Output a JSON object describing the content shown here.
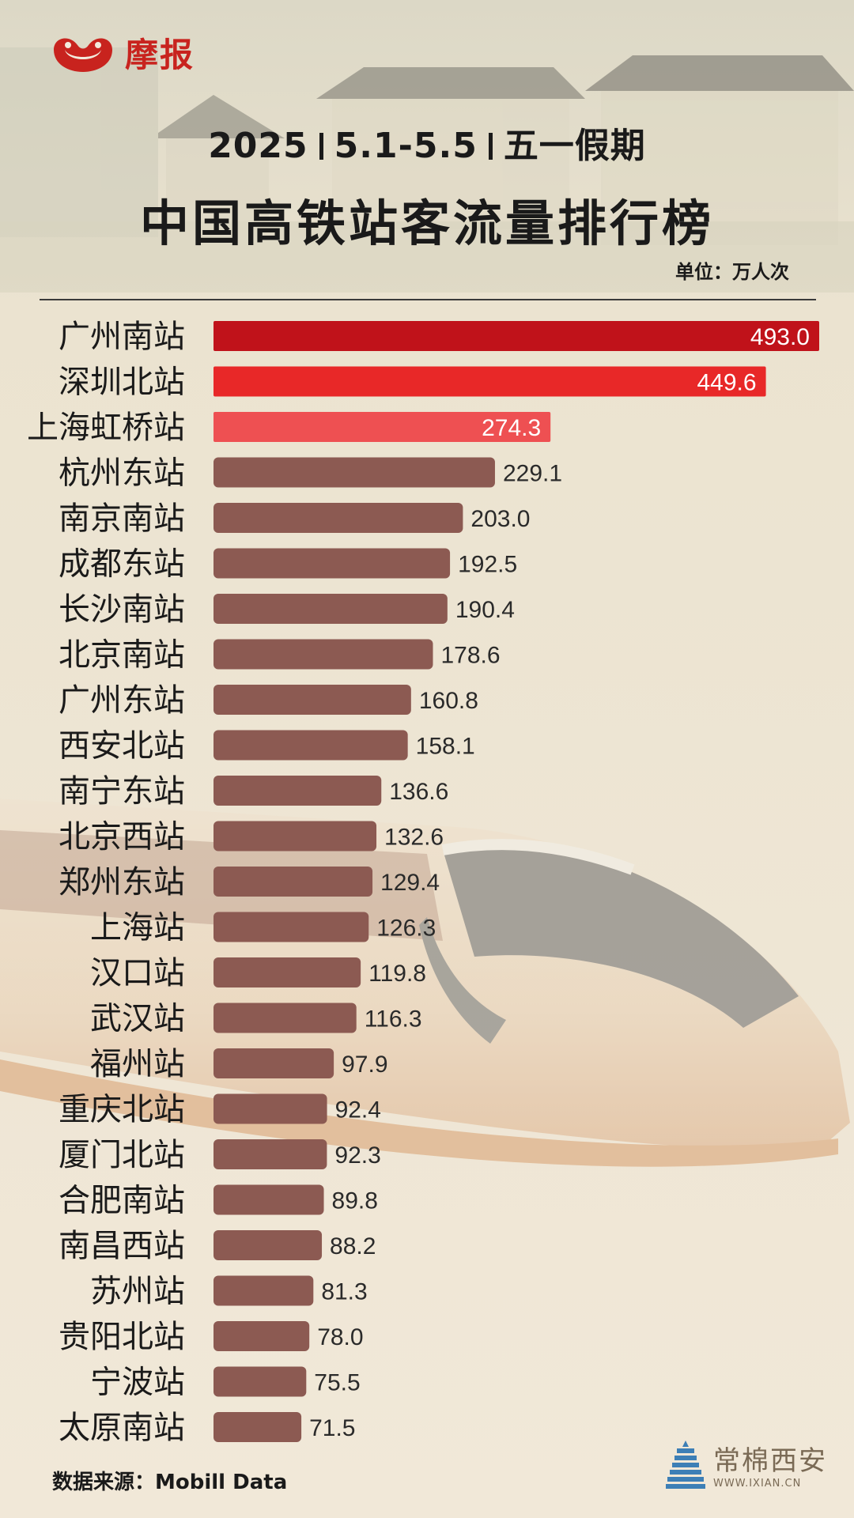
{
  "brand": {
    "logo_text": "摩报"
  },
  "header": {
    "year": "2025",
    "dates": "5.1-5.5",
    "holiday": "五一假期",
    "title": "中国高铁站客流量排行榜",
    "unit": "单位：万人次"
  },
  "footer": {
    "source": "数据来源：Mobill Data",
    "watermark": "常棉西安",
    "watermark_url": "WWW.IXIAN.CN"
  },
  "colors": {
    "top1": "#c0121a",
    "top2": "#e82828",
    "top3": "#ee5052",
    "bar": "#8c5a52",
    "background": "#efe6d6"
  },
  "chart_data": {
    "type": "bar",
    "orientation": "horizontal",
    "title": "中国高铁站客流量排行榜",
    "categories": [
      "广州南站",
      "深圳北站",
      "上海虹桥站",
      "杭州东站",
      "南京南站",
      "成都东站",
      "长沙南站",
      "北京南站",
      "广州东站",
      "西安北站",
      "南宁东站",
      "北京西站",
      "郑州东站",
      "上海站",
      "汉口站",
      "武汉站",
      "福州站",
      "重庆北站",
      "厦门北站",
      "合肥南站",
      "南昌西站",
      "苏州站",
      "贵阳北站",
      "宁波站",
      "太原南站"
    ],
    "values": [
      493.0,
      449.6,
      274.3,
      229.1,
      203.0,
      192.5,
      190.4,
      178.6,
      160.8,
      158.1,
      136.6,
      132.6,
      129.4,
      126.3,
      119.8,
      116.3,
      97.9,
      92.4,
      92.3,
      89.8,
      88.2,
      81.3,
      78.0,
      75.5,
      71.5
    ],
    "value_labels": [
      "493.0",
      "449.6",
      "274.3",
      "229.1",
      "203.0",
      "192.5",
      "190.4",
      "178.6",
      "160.8",
      "158.1",
      "136.6",
      "132.6",
      "129.4",
      "126.3",
      "119.8",
      "116.3",
      "97.9",
      "92.4",
      "92.3",
      "89.8",
      "88.2",
      "81.3",
      "78.0",
      "75.5",
      "71.5"
    ],
    "xlim": [
      0,
      493.0
    ],
    "grid": false,
    "legend": "none"
  }
}
